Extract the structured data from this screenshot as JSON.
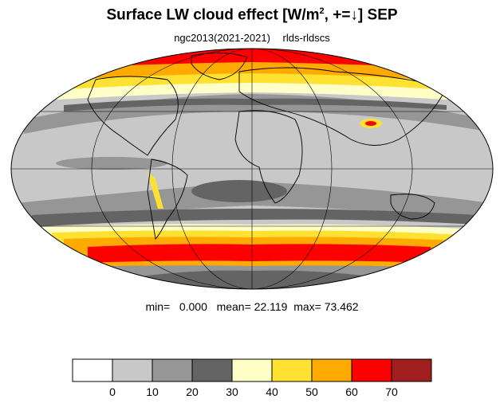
{
  "title": {
    "main": "Surface LW cloud effect [W/m",
    "sup": "2",
    "rest": ", +=↓]  SEP"
  },
  "subtitle": {
    "model": "ngc2013(2021-2021)",
    "variable": "rlds-rldscs"
  },
  "stats": {
    "min_label": "min=",
    "min": "0.000",
    "mean_label": "mean=",
    "mean": "22.119",
    "max_label": "max=",
    "max": "73.462"
  },
  "colorbar": {
    "colors": [
      "#ffffff",
      "#c8c8c8",
      "#969696",
      "#646464",
      "#ffffc8",
      "#ffe132",
      "#ffaa00",
      "#ff0000",
      "#a01e1e"
    ],
    "labels": [
      "0",
      "10",
      "20",
      "30",
      "40",
      "50",
      "60",
      "70"
    ]
  },
  "map": {
    "projection": "Mollweide",
    "ocean_color": "#c8c8c8",
    "coastline_color": "#000000",
    "grid_color": "#000000"
  }
}
